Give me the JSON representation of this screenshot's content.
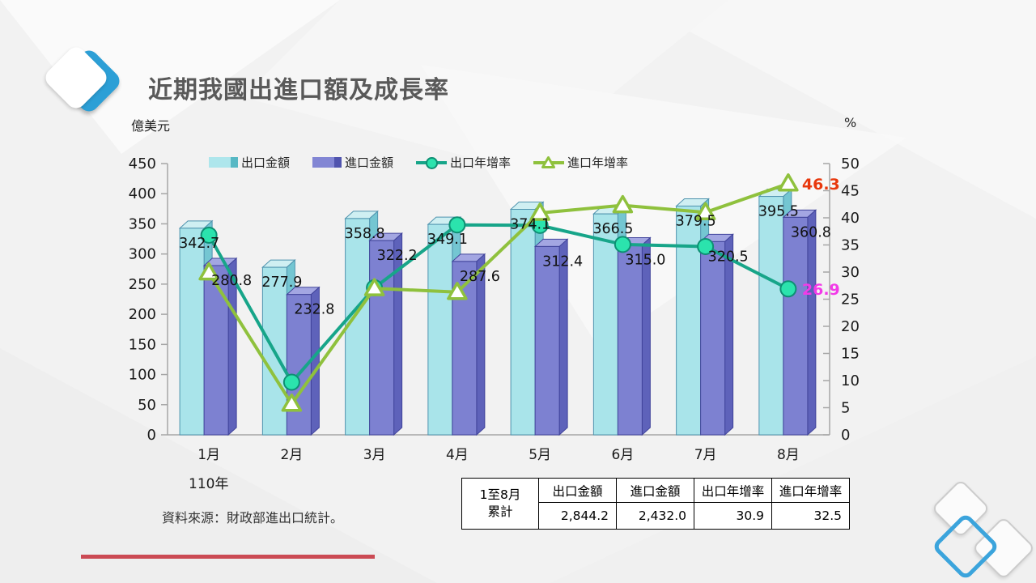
{
  "page": {
    "title": "近期我國出進口額及成長率",
    "left_axis_unit": "億美元",
    "right_axis_unit": "%",
    "year_label": "110年",
    "source": "資料來源：財政部進出口統計。"
  },
  "chart_data": {
    "type": "combo-bar-line",
    "categories": [
      "1月",
      "2月",
      "3月",
      "4月",
      "5月",
      "6月",
      "7月",
      "8月"
    ],
    "bar_series": [
      {
        "name": "出口金額",
        "values": [
          342.7,
          277.9,
          358.8,
          349.1,
          374.1,
          366.5,
          379.5,
          395.5
        ],
        "front_color": "#a9e4ea",
        "top_color": "#cfeff2",
        "side_color": "#74c6d2",
        "edge_color": "#4f93ae"
      },
      {
        "name": "進口金額",
        "values": [
          280.8,
          232.8,
          322.2,
          287.6,
          312.4,
          315.0,
          320.5,
          360.8
        ],
        "front_color": "#7d81d1",
        "top_color": "#a3a6e2",
        "side_color": "#5e62ba",
        "edge_color": "#41449b"
      }
    ],
    "line_series": [
      {
        "name": "出口年增率",
        "values": [
          36.8,
          9.7,
          27.1,
          38.7,
          38.6,
          35.1,
          34.7,
          26.9
        ],
        "color": "#17a589",
        "marker": "circle",
        "marker_fill": "#2be3ad",
        "marker_stroke": "#0e8f73",
        "end_label": "26.9",
        "end_label_color": "#f23ae8"
      },
      {
        "name": "進口年增率",
        "values": [
          29.9,
          5.7,
          27.0,
          26.3,
          40.9,
          42.3,
          41.0,
          46.3
        ],
        "color": "#8fc13d",
        "marker": "triangle",
        "marker_fill": "#ffffff",
        "marker_stroke": "#8fc13d",
        "end_label": "46.3",
        "end_label_color": "#e8380d"
      }
    ],
    "left_axis": {
      "min": 0,
      "max": 450,
      "step": 50
    },
    "right_axis": {
      "min": 0,
      "max": 50,
      "step": 5
    },
    "grid": false,
    "legend_position": "top"
  },
  "table": {
    "row_header_line1": "1至8月",
    "row_header_line2": "累計",
    "columns": [
      "出口金額",
      "進口金額",
      "出口年增率",
      "進口年增率"
    ],
    "values": [
      "2,844.2",
      "2,432.0",
      "30.9",
      "32.5"
    ]
  }
}
